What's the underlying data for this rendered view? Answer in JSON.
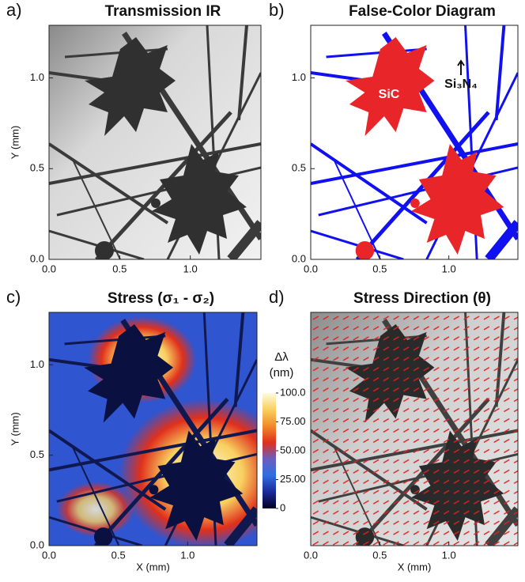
{
  "chart_data": [
    {
      "type": "image",
      "panel_label": "a)",
      "title": "Transmission IR",
      "y_label": "Y (mm)",
      "xlim": [
        0,
        1.5
      ],
      "ylim": [
        0,
        1.29
      ],
      "xticks": [
        {
          "value": 0,
          "label": "0.0"
        },
        {
          "value": 0.5,
          "label": "0.5"
        },
        {
          "value": 1,
          "label": "1.0"
        }
      ],
      "yticks": [
        {
          "value": 0,
          "label": "0.0"
        },
        {
          "value": 0.5,
          "label": "0.5"
        },
        {
          "value": 1,
          "label": "1.0"
        }
      ]
    },
    {
      "type": "image",
      "panel_label": "b)",
      "title": "False-Color Diagram",
      "annotations": [
        "SiC",
        "Si₃N₄"
      ],
      "xlim": [
        0,
        1.5
      ],
      "ylim": [
        0,
        1.29
      ],
      "xticks": [
        {
          "value": 0,
          "label": "0.0"
        },
        {
          "value": 0.5,
          "label": "0.5"
        },
        {
          "value": 1,
          "label": "1.0"
        }
      ],
      "yticks": [
        {
          "value": 0,
          "label": "0.0"
        },
        {
          "value": 0.5,
          "label": "0.5"
        },
        {
          "value": 1,
          "label": "1.0"
        }
      ]
    },
    {
      "type": "image",
      "panel_label": "c)",
      "title": "Stress (σ₁ - σ₂)",
      "x_label": "X (mm)",
      "y_label": "Y (mm)",
      "xlim": [
        0,
        1.5
      ],
      "ylim": [
        0,
        1.29
      ],
      "xticks": [
        {
          "value": 0,
          "label": "0.0"
        },
        {
          "value": 0.5,
          "label": "0.5"
        },
        {
          "value": 1,
          "label": "1.0"
        }
      ],
      "yticks": [
        {
          "value": 0,
          "label": "0.0"
        },
        {
          "value": 0.5,
          "label": "0.5"
        },
        {
          "value": 1,
          "label": "1.0"
        }
      ],
      "colorbar": {
        "label": [
          "Δλ",
          "(nm)"
        ],
        "lim": [
          0,
          100
        ],
        "ticks": [
          {
            "value": 100,
            "label": "100.0"
          },
          {
            "value": 75,
            "label": "75.00"
          },
          {
            "value": 50,
            "label": "50.00"
          },
          {
            "value": 25,
            "label": "25.00"
          },
          0
        ],
        "colors": [
          "#000022",
          "#1a2a9a",
          "#2f6ee0",
          "#6a5ec0",
          "#e0301c",
          "#f28a2a",
          "#f8d060",
          "#fffbe0"
        ]
      }
    },
    {
      "type": "image",
      "panel_label": "d)",
      "title": "Stress Direction (θ)",
      "x_label": "X (mm)",
      "xlim": [
        0,
        1.5
      ],
      "xticks": [
        {
          "value": 0,
          "label": "0.0"
        },
        {
          "value": 0.5,
          "label": "0.5"
        },
        {
          "value": 1,
          "label": "1.0"
        }
      ]
    }
  ]
}
